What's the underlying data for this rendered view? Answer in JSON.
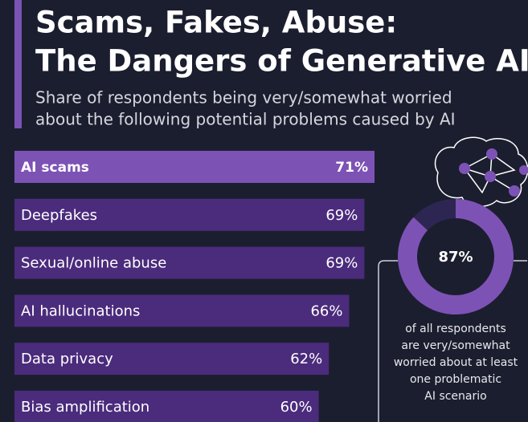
{
  "chart_data": [
    {
      "type": "bar",
      "title": [
        "Scams, Fakes, Abuse:",
        "The Dangers of Generative AI"
      ],
      "subtitle": [
        "Share of respondents being very/somewhat worried",
        "about the following potential problems caused by AI"
      ],
      "categories": [
        "AI scams",
        "Deepfakes",
        "Sexual/online abuse",
        "AI hallucinations",
        "Data privacy",
        "Bias amplification"
      ],
      "values": [
        71,
        69,
        69,
        66,
        62,
        60
      ],
      "value_labels": [
        "71%",
        "69%",
        "69%",
        "66%",
        "62%",
        "60%"
      ],
      "colors": [
        "#7d52b5",
        "#4b2b7c",
        "#4b2b7c",
        "#4b2b7c",
        "#4b2b7c",
        "#4b2b7c"
      ]
    },
    {
      "type": "donut",
      "values": [
        87
      ],
      "value_labels": [
        "87%"
      ],
      "color": "#7d52b5",
      "caption": [
        "of all respondents",
        "are very/somewhat",
        "worried about at least",
        "one problematic",
        "AI scenario"
      ]
    }
  ]
}
